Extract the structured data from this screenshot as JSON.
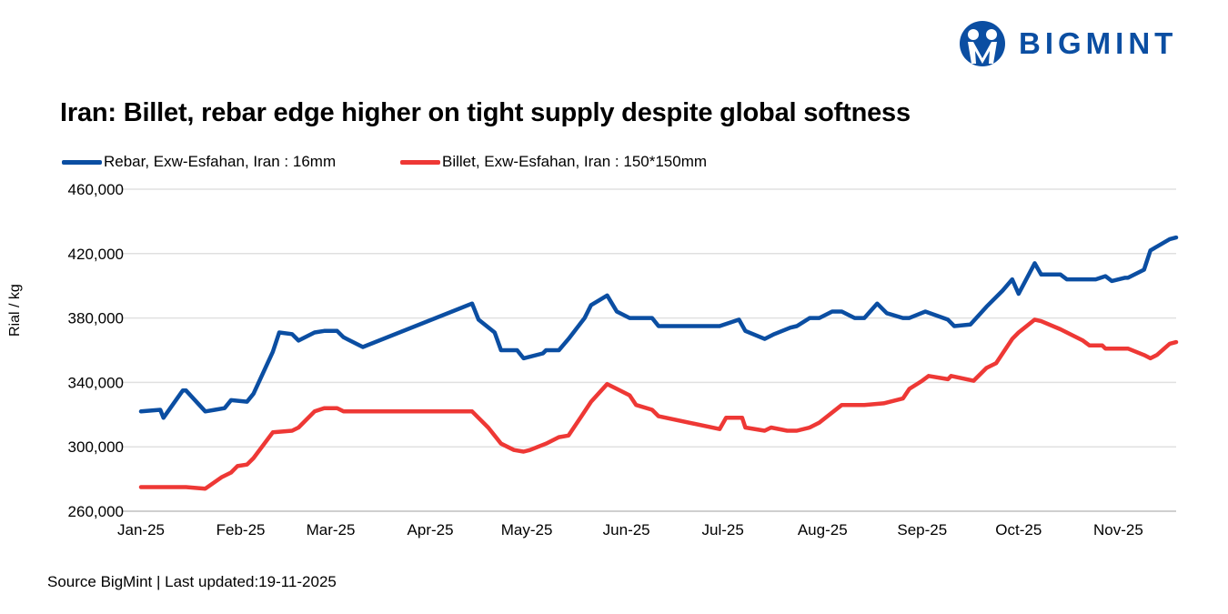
{
  "brand": {
    "name": "BIGMINT",
    "color": "#0b4ea2"
  },
  "source": "Source BigMint | Last updated:19-11-2025",
  "chart_data": {
    "type": "line",
    "title": "Iran: Billet, rebar edge higher on tight supply despite global softness",
    "xlabel": "",
    "ylabel": "Rial / kg",
    "x_unit": "days since 2025-01-01",
    "xlim": [
      0,
      322
    ],
    "ylim": [
      260000,
      460000
    ],
    "yticks": [
      260000,
      300000,
      340000,
      380000,
      420000,
      460000
    ],
    "ytick_labels": [
      "260,000",
      "300,000",
      "340,000",
      "380,000",
      "420,000",
      "460,000"
    ],
    "xticks": [
      0,
      31,
      59,
      90,
      120,
      151,
      181,
      212,
      243,
      273,
      304
    ],
    "xtick_labels": [
      "Jan-25",
      "Feb-25",
      "Mar-25",
      "Apr-25",
      "May-25",
      "Jun-25",
      "Jul-25",
      "Aug-25",
      "Sep-25",
      "Oct-25",
      "Nov-25"
    ],
    "grid": true,
    "legend_position": "top-left",
    "series": [
      {
        "name": "Rebar, Exw-Esfahan, Iran : 16mm",
        "color": "#0b4ea2",
        "x": [
          0,
          6,
          7,
          13,
          14,
          20,
          23,
          26,
          28,
          33,
          35,
          41,
          43,
          47,
          49,
          54,
          57,
          61,
          63,
          69,
          103,
          105,
          110,
          112,
          117,
          119,
          125,
          126,
          130,
          133,
          138,
          140,
          145,
          148,
          152,
          159,
          161,
          180,
          186,
          188,
          194,
          197,
          202,
          204,
          208,
          211,
          215,
          218,
          222,
          225,
          229,
          232,
          237,
          239,
          244,
          251,
          253,
          258,
          263,
          268,
          271,
          273,
          278,
          280,
          286,
          288,
          297,
          300,
          302,
          306,
          307,
          312,
          314,
          320,
          322
        ],
        "y": [
          322000,
          323000,
          318000,
          335000,
          335000,
          322000,
          323000,
          324000,
          329000,
          328000,
          333000,
          359000,
          371000,
          370000,
          366000,
          371000,
          372000,
          372000,
          368000,
          362000,
          389000,
          379000,
          371000,
          360000,
          360000,
          355000,
          358000,
          360000,
          360000,
          367000,
          380000,
          388000,
          394000,
          384000,
          380000,
          380000,
          375000,
          375000,
          379000,
          372000,
          367000,
          370000,
          374000,
          375000,
          380000,
          380000,
          384000,
          384000,
          380000,
          380000,
          389000,
          383000,
          380000,
          380000,
          384000,
          379000,
          375000,
          376000,
          387000,
          397000,
          404000,
          395000,
          414000,
          407000,
          407000,
          404000,
          404000,
          406000,
          403000,
          405000,
          405000,
          410000,
          422000,
          429000,
          430000
        ]
      },
      {
        "name": "Billet, Exw-Esfahan, Iran : 150*150mm",
        "color": "#ee3835",
        "x": [
          0,
          7,
          14,
          20,
          25,
          28,
          30,
          33,
          35,
          41,
          47,
          49,
          54,
          57,
          61,
          63,
          68,
          103,
          108,
          112,
          116,
          119,
          121,
          126,
          130,
          133,
          137,
          140,
          145,
          148,
          152,
          154,
          159,
          161,
          180,
          182,
          187,
          188,
          194,
          196,
          201,
          204,
          208,
          211,
          218,
          222,
          225,
          231,
          237,
          239,
          243,
          245,
          251,
          252,
          259,
          263,
          266,
          271,
          273,
          278,
          280,
          286,
          293,
          295,
          299,
          300,
          307,
          312,
          314,
          316,
          320,
          322
        ],
        "y": [
          275000,
          275000,
          275000,
          274000,
          281000,
          284000,
          288000,
          289000,
          293000,
          309000,
          310000,
          312000,
          322000,
          324000,
          324000,
          322000,
          322000,
          322000,
          312000,
          302000,
          298000,
          297000,
          298000,
          302000,
          306000,
          307000,
          319000,
          328000,
          339000,
          336000,
          332000,
          326000,
          323000,
          319000,
          311000,
          318000,
          318000,
          312000,
          310000,
          312000,
          310000,
          310000,
          312000,
          315000,
          326000,
          326000,
          326000,
          327000,
          330000,
          336000,
          341000,
          344000,
          342000,
          344000,
          341000,
          349000,
          352000,
          367000,
          371000,
          379000,
          378000,
          373000,
          366000,
          363000,
          363000,
          361000,
          361000,
          357000,
          355000,
          357000,
          364000,
          365000
        ]
      }
    ]
  }
}
